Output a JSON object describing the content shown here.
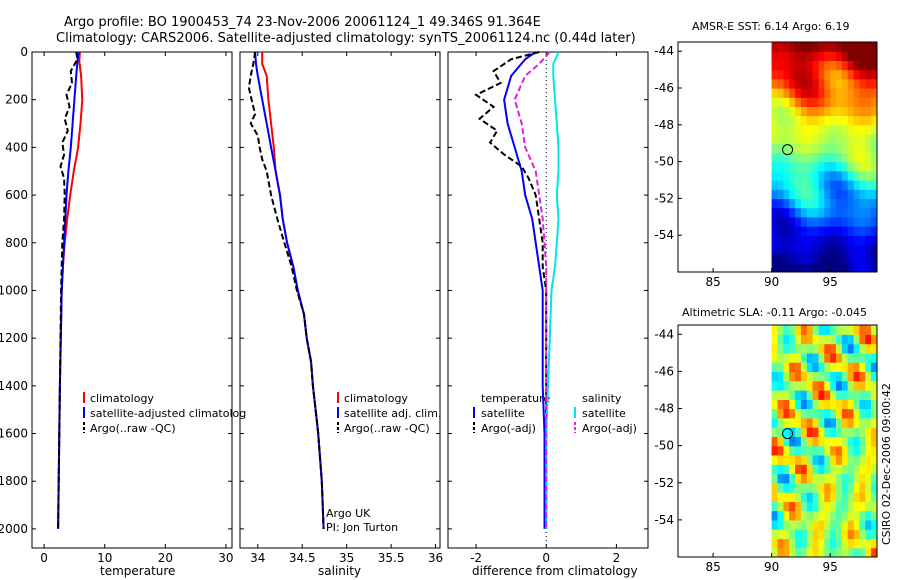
{
  "header": {
    "title_line1": "Argo profile: BO 1900453_74 23-Nov-2006 20061124_1 49.346S 91.364E",
    "title_line2": "Climatology: CARS2006. Satellite-adjusted climatology: synTS_20061124.nc (0.44d later)"
  },
  "side_stamp": "CSIRO 02-Dec-2006 09:00:42",
  "colors": {
    "red": "#ff0000",
    "blue": "#0000ff",
    "black": "#000000",
    "cyan": "#00e5e5",
    "magenta": "#e020e0"
  },
  "chart_data": [
    {
      "type": "line",
      "id": "temperature",
      "xlabel": "temperature",
      "xlim": [
        -2,
        31
      ],
      "ylim": [
        0,
        2080
      ],
      "y_reversed": true,
      "xticks": [
        0,
        10,
        20,
        30
      ],
      "yticks": [
        0,
        200,
        400,
        600,
        800,
        1000,
        1200,
        1400,
        1600,
        1800,
        2000
      ],
      "legend": [
        "climatology",
        "satellite-adjusted climatolog",
        "Argo(..raw -QC)"
      ],
      "series": [
        {
          "name": "climatology",
          "color": "red",
          "dash": "solid",
          "points": [
            [
              5.9,
              0
            ],
            [
              5.8,
              40
            ],
            [
              6.1,
              100
            ],
            [
              6.3,
              200
            ],
            [
              6.0,
              300
            ],
            [
              5.6,
              400
            ],
            [
              4.9,
              500
            ],
            [
              4.3,
              600
            ],
            [
              3.8,
              700
            ],
            [
              3.4,
              800
            ],
            [
              3.1,
              900
            ],
            [
              2.9,
              1000
            ],
            [
              2.75,
              1200
            ],
            [
              2.6,
              1400
            ],
            [
              2.5,
              1600
            ],
            [
              2.4,
              1800
            ],
            [
              2.3,
              2000
            ]
          ]
        },
        {
          "name": "satellite-adjusted climatology",
          "color": "blue",
          "dash": "solid",
          "points": [
            [
              5.7,
              0
            ],
            [
              5.5,
              40
            ],
            [
              5.3,
              100
            ],
            [
              5.0,
              200
            ],
            [
              4.7,
              300
            ],
            [
              4.4,
              400
            ],
            [
              4.0,
              500
            ],
            [
              3.7,
              600
            ],
            [
              3.5,
              700
            ],
            [
              3.3,
              800
            ],
            [
              3.1,
              900
            ],
            [
              2.9,
              1000
            ],
            [
              2.75,
              1200
            ],
            [
              2.6,
              1400
            ],
            [
              2.5,
              1600
            ],
            [
              2.4,
              1800
            ],
            [
              2.3,
              2000
            ]
          ]
        },
        {
          "name": "Argo(..raw -QC)",
          "color": "black",
          "dash": "dashed",
          "points": [
            [
              5.3,
              0
            ],
            [
              5.5,
              30
            ],
            [
              4.4,
              80
            ],
            [
              4.6,
              130
            ],
            [
              3.7,
              180
            ],
            [
              4.2,
              230
            ],
            [
              3.4,
              280
            ],
            [
              3.9,
              330
            ],
            [
              3.0,
              380
            ],
            [
              3.3,
              430
            ],
            [
              2.7,
              480
            ],
            [
              3.3,
              530
            ],
            [
              3.4,
              600
            ],
            [
              3.3,
              700
            ],
            [
              3.0,
              800
            ],
            [
              2.9,
              900
            ],
            [
              2.8,
              1000
            ],
            [
              2.7,
              1200
            ],
            [
              2.6,
              1400
            ],
            [
              2.5,
              1600
            ],
            [
              2.4,
              1800
            ],
            [
              2.3,
              2000
            ]
          ]
        }
      ]
    },
    {
      "type": "line",
      "id": "salinity",
      "xlabel": "salinity",
      "xlim": [
        33.8,
        36.05
      ],
      "ylim": [
        0,
        2080
      ],
      "y_reversed": true,
      "xticks": [
        34,
        34.5,
        35,
        35.5,
        36
      ],
      "legend": [
        "climatology",
        "satellite adj. clim.",
        "Argo(..raw -QC)"
      ],
      "annotations": [
        "Argo UK",
        "PI: Jon Turton"
      ],
      "series": [
        {
          "name": "climatology",
          "color": "red",
          "dash": "solid",
          "points": [
            [
              34.05,
              0
            ],
            [
              34.05,
              50
            ],
            [
              34.1,
              100
            ],
            [
              34.12,
              200
            ],
            [
              34.15,
              300
            ],
            [
              34.18,
              400
            ],
            [
              34.2,
              500
            ],
            [
              34.25,
              600
            ],
            [
              34.28,
              700
            ],
            [
              34.33,
              800
            ],
            [
              34.4,
              900
            ],
            [
              34.45,
              1000
            ],
            [
              34.52,
              1100
            ],
            [
              34.55,
              1200
            ],
            [
              34.6,
              1300
            ],
            [
              34.62,
              1400
            ],
            [
              34.65,
              1500
            ],
            [
              34.68,
              1600
            ],
            [
              34.7,
              1700
            ],
            [
              34.72,
              1800
            ],
            [
              34.73,
              1900
            ],
            [
              34.74,
              2000
            ]
          ]
        },
        {
          "name": "satellite adj. clim.",
          "color": "blue",
          "dash": "solid",
          "points": [
            [
              33.97,
              0
            ],
            [
              33.98,
              50
            ],
            [
              34.0,
              100
            ],
            [
              34.05,
              200
            ],
            [
              34.1,
              300
            ],
            [
              34.15,
              400
            ],
            [
              34.2,
              500
            ],
            [
              34.25,
              600
            ],
            [
              34.28,
              700
            ],
            [
              34.33,
              800
            ],
            [
              34.4,
              900
            ],
            [
              34.45,
              1000
            ],
            [
              34.52,
              1100
            ],
            [
              34.55,
              1200
            ],
            [
              34.6,
              1300
            ],
            [
              34.62,
              1400
            ],
            [
              34.65,
              1500
            ],
            [
              34.68,
              1600
            ],
            [
              34.7,
              1700
            ],
            [
              34.72,
              1800
            ],
            [
              34.73,
              1900
            ],
            [
              34.74,
              2000
            ]
          ]
        },
        {
          "name": "Argo(..raw -QC)",
          "color": "black",
          "dash": "dashed",
          "points": [
            [
              33.97,
              0
            ],
            [
              33.95,
              50
            ],
            [
              33.92,
              100
            ],
            [
              33.9,
              150
            ],
            [
              33.93,
              200
            ],
            [
              33.97,
              260
            ],
            [
              33.92,
              300
            ],
            [
              34.0,
              350
            ],
            [
              34.02,
              400
            ],
            [
              34.05,
              450
            ],
            [
              34.1,
              500
            ],
            [
              34.15,
              600
            ],
            [
              34.22,
              700
            ],
            [
              34.3,
              800
            ],
            [
              34.38,
              900
            ],
            [
              34.44,
              1000
            ],
            [
              34.52,
              1100
            ],
            [
              34.55,
              1200
            ],
            [
              34.6,
              1300
            ],
            [
              34.62,
              1400
            ],
            [
              34.65,
              1500
            ],
            [
              34.68,
              1600
            ],
            [
              34.7,
              1700
            ],
            [
              34.72,
              1800
            ],
            [
              34.73,
              1900
            ],
            [
              34.74,
              2000
            ]
          ]
        }
      ]
    },
    {
      "type": "line",
      "id": "difference",
      "xlabel": "difference from climatology",
      "xlim": [
        -2.8,
        2.9
      ],
      "ylim": [
        0,
        2080
      ],
      "y_reversed": true,
      "xticks": [
        -2,
        0,
        2
      ],
      "legend_left_title": "temperature",
      "legend_right_title": "salinity",
      "legend": [
        "satellite",
        "Argo(-adj)",
        "satellite",
        "Argo(-adj)"
      ],
      "series": [
        {
          "name": "temperature satellite",
          "color": "blue",
          "dash": "solid",
          "points": [
            [
              -0.3,
              0
            ],
            [
              -0.6,
              30
            ],
            [
              -1.0,
              100
            ],
            [
              -1.2,
              200
            ],
            [
              -1.1,
              300
            ],
            [
              -0.9,
              400
            ],
            [
              -0.7,
              500
            ],
            [
              -0.6,
              600
            ],
            [
              -0.4,
              700
            ],
            [
              -0.3,
              800
            ],
            [
              -0.2,
              900
            ],
            [
              -0.1,
              1000
            ],
            [
              -0.1,
              1200
            ],
            [
              -0.1,
              1400
            ],
            [
              -0.05,
              1600
            ],
            [
              -0.05,
              1800
            ],
            [
              -0.05,
              2000
            ]
          ]
        },
        {
          "name": "temperature Argo(-adj)",
          "color": "black",
          "dash": "dashed",
          "points": [
            [
              -0.2,
              0
            ],
            [
              -1.0,
              30
            ],
            [
              -1.5,
              80
            ],
            [
              -1.3,
              130
            ],
            [
              -2.0,
              180
            ],
            [
              -1.5,
              230
            ],
            [
              -1.9,
              280
            ],
            [
              -1.4,
              330
            ],
            [
              -1.6,
              380
            ],
            [
              -1.2,
              430
            ],
            [
              -0.7,
              480
            ],
            [
              -0.5,
              530
            ],
            [
              -0.3,
              600
            ],
            [
              -0.2,
              700
            ],
            [
              -0.1,
              800
            ],
            [
              -0.1,
              900
            ],
            [
              0.0,
              1000
            ],
            [
              0.0,
              1200
            ],
            [
              0.0,
              1400
            ],
            [
              0.0,
              1600
            ],
            [
              0.0,
              1800
            ],
            [
              0.0,
              2000
            ]
          ]
        },
        {
          "name": "salinity satellite",
          "color": "cyan",
          "dash": "solid",
          "points": [
            [
              0.35,
              0
            ],
            [
              0.2,
              50
            ],
            [
              0.2,
              100
            ],
            [
              0.25,
              200
            ],
            [
              0.3,
              300
            ],
            [
              0.35,
              400
            ],
            [
              0.35,
              500
            ],
            [
              0.3,
              600
            ],
            [
              0.35,
              700
            ],
            [
              0.3,
              800
            ],
            [
              0.25,
              900
            ],
            [
              0.15,
              1000
            ],
            [
              0.1,
              1200
            ],
            [
              0.05,
              1400
            ],
            [
              0.0,
              1600
            ],
            [
              0.0,
              1800
            ],
            [
              0.0,
              2000
            ]
          ]
        },
        {
          "name": "salinity Argo(-adj)",
          "color": "magenta",
          "dash": "dashed",
          "points": [
            [
              0.1,
              0
            ],
            [
              -0.2,
              50
            ],
            [
              -0.6,
              100
            ],
            [
              -0.9,
              200
            ],
            [
              -0.7,
              300
            ],
            [
              -0.6,
              400
            ],
            [
              -0.3,
              500
            ],
            [
              -0.2,
              600
            ],
            [
              -0.1,
              700
            ],
            [
              -0.05,
              800
            ],
            [
              0.0,
              900
            ],
            [
              0.0,
              1000
            ],
            [
              0.0,
              1200
            ],
            [
              0.0,
              1400
            ],
            [
              0.0,
              1600
            ],
            [
              0.0,
              1800
            ],
            [
              0.0,
              2000
            ]
          ]
        }
      ]
    },
    {
      "type": "heatmap",
      "id": "sst_map",
      "title": "AMSR-E SST: 6.14 Argo: 6.19",
      "xlim": [
        82,
        99
      ],
      "ylim": [
        -56,
        -43.5
      ],
      "xticks": [
        85,
        90,
        95
      ],
      "yticks": [
        -44,
        -46,
        -48,
        -50,
        -52,
        -54
      ],
      "data_xlim": [
        90,
        99
      ],
      "marker": [
        91.36,
        -49.35
      ],
      "colormap": "jet"
    },
    {
      "type": "heatmap",
      "id": "sla_map",
      "title": "Altimetric SLA: -0.11 Argo: -0.045",
      "xlim": [
        82,
        99
      ],
      "ylim": [
        -56,
        -43.5
      ],
      "xticks": [
        85,
        90,
        95
      ],
      "yticks": [
        -44,
        -46,
        -48,
        -50,
        -52,
        -54
      ],
      "data_xlim": [
        90,
        99
      ],
      "marker": [
        91.36,
        -49.35
      ],
      "colormap": "jet"
    }
  ]
}
